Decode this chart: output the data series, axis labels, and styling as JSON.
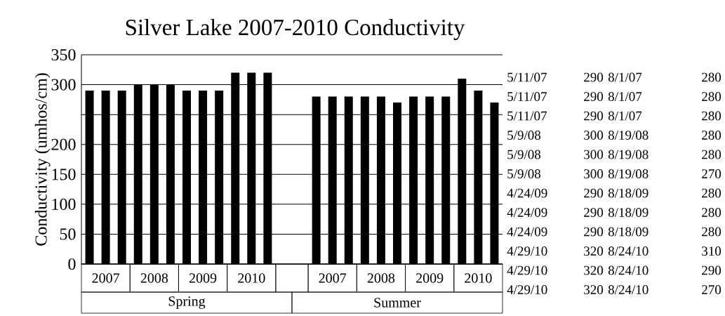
{
  "chart_data": {
    "type": "bar",
    "title": "Silver  Lake 2007-2010 Conductivity",
    "ylabel": "Conductivity (umhos/cm)",
    "categories": [
      null,
      "2007",
      null,
      null,
      "2008",
      null,
      null,
      "2009",
      null,
      null,
      "2010",
      null,
      null,
      null,
      null,
      "2007",
      null,
      null,
      "2008",
      null,
      null,
      "2009",
      null,
      null,
      "2010",
      null
    ],
    "values": [
      290,
      290,
      290,
      300,
      300,
      300,
      290,
      290,
      290,
      320,
      320,
      320,
      null,
      null,
      280,
      280,
      280,
      280,
      280,
      270,
      280,
      280,
      280,
      310,
      290,
      270
    ],
    "color": "#000000",
    "ylim": [
      0,
      350
    ],
    "yticks": [
      0,
      50,
      100,
      150,
      200,
      {
        "value": 250,
        "label": null
      },
      300,
      350
    ],
    "grid": "y",
    "annotations": [
      "Spring",
      "Summer",
      "5/11/07",
      "290",
      "8/1/07",
      "280",
      "5/11/07",
      "290",
      "8/1/07",
      "280",
      "5/11/07",
      "290",
      "8/1/07",
      "280",
      "5/9/08",
      "300",
      "8/19/08",
      "280",
      "5/9/08",
      "300",
      "8/19/08",
      "280",
      "5/9/08",
      "300",
      "8/19/08",
      "270",
      "4/24/09",
      "290",
      "8/18/09",
      "280",
      "4/24/09",
      "290",
      "8/18/09",
      "280",
      "4/24/09",
      "290",
      "8/18/09",
      "280",
      "4/29/10",
      "320",
      "8/24/10",
      "310",
      "4/29/10",
      "320",
      "8/24/10",
      "290",
      "4/29/10",
      "320",
      "8/24/10",
      "270"
    ]
  }
}
